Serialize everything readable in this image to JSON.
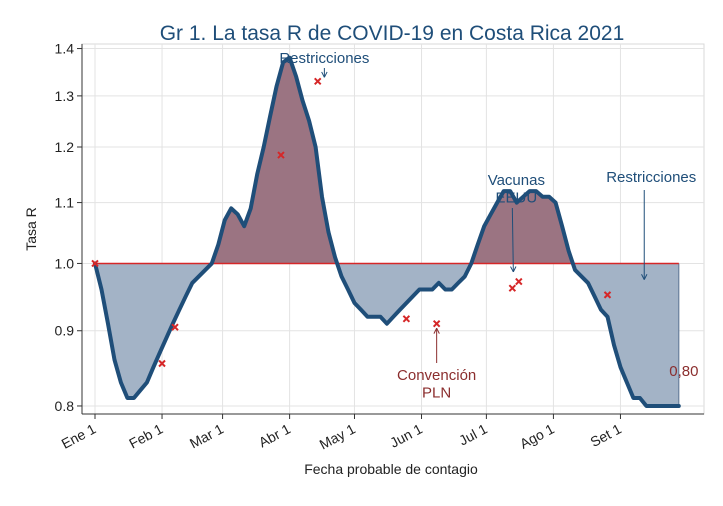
{
  "chart_data": {
    "type": "area",
    "title": "Gr 1. La tasa R de COVID-19 en Costa Rica 2021",
    "xlabel": "Fecha probable de contagio",
    "ylabel": "Tasa R",
    "reference_line": 1.0,
    "y_scale": "log",
    "ylim": [
      0.79,
      1.41
    ],
    "xlim": [
      "2021-01-01",
      "2021-09-29"
    ],
    "x_ticks": [
      {
        "date": "2021-01-01",
        "label": "Ene 1"
      },
      {
        "date": "2021-02-01",
        "label": "Feb 1"
      },
      {
        "date": "2021-03-01",
        "label": "Mar 1"
      },
      {
        "date": "2021-04-01",
        "label": "Abr 1"
      },
      {
        "date": "2021-05-01",
        "label": "May 1"
      },
      {
        "date": "2021-06-01",
        "label": "Jun 1"
      },
      {
        "date": "2021-07-01",
        "label": "Jul 1"
      },
      {
        "date": "2021-08-01",
        "label": "Ago 1"
      },
      {
        "date": "2021-09-01",
        "label": "Set 1"
      }
    ],
    "y_ticks": [
      {
        "value": 0.8,
        "label": "0.8"
      },
      {
        "value": 0.9,
        "label": "0.9"
      },
      {
        "value": 1.0,
        "label": "1.0"
      },
      {
        "value": 1.1,
        "label": "1.1"
      },
      {
        "value": 1.2,
        "label": "1.2"
      },
      {
        "value": 1.3,
        "label": "1.3"
      },
      {
        "value": 1.4,
        "label": "1.4"
      }
    ],
    "grid": true,
    "colors": {
      "line": "#1f4e79",
      "above_fill": "#9b7482",
      "below_fill": "#a3b3c6",
      "reference": "#d62728",
      "markers": "#d62728",
      "title": "#1f4e79",
      "annotation_blue": "#1f4e79",
      "annotation_red": "#8b2e2e"
    },
    "series": [
      {
        "x": [
          "2021-01-01",
          "2021-01-04",
          "2021-01-07",
          "2021-01-10",
          "2021-01-13",
          "2021-01-16",
          "2021-01-19",
          "2021-01-22",
          "2021-01-25",
          "2021-01-28",
          "2021-01-31",
          "2021-02-03",
          "2021-02-06",
          "2021-02-09",
          "2021-02-12",
          "2021-02-15",
          "2021-02-18",
          "2021-02-21",
          "2021-02-24",
          "2021-02-27",
          "2021-03-02",
          "2021-03-05",
          "2021-03-08",
          "2021-03-11",
          "2021-03-14",
          "2021-03-17",
          "2021-03-20",
          "2021-03-23",
          "2021-03-26",
          "2021-03-29",
          "2021-04-01",
          "2021-04-04",
          "2021-04-07",
          "2021-04-10",
          "2021-04-13",
          "2021-04-16",
          "2021-04-19",
          "2021-04-22",
          "2021-04-25",
          "2021-04-28",
          "2021-05-01",
          "2021-05-04",
          "2021-05-07",
          "2021-05-10",
          "2021-05-13",
          "2021-05-16",
          "2021-05-19",
          "2021-05-22",
          "2021-05-25",
          "2021-05-28",
          "2021-05-31",
          "2021-06-03",
          "2021-06-06",
          "2021-06-09",
          "2021-06-12",
          "2021-06-15",
          "2021-06-18",
          "2021-06-21",
          "2021-06-24",
          "2021-06-27",
          "2021-06-30",
          "2021-07-03",
          "2021-07-06",
          "2021-07-09",
          "2021-07-12",
          "2021-07-15",
          "2021-07-18",
          "2021-07-21",
          "2021-07-24",
          "2021-07-27",
          "2021-07-30",
          "2021-08-02",
          "2021-08-05",
          "2021-08-08",
          "2021-08-11",
          "2021-08-14",
          "2021-08-17",
          "2021-08-20",
          "2021-08-23",
          "2021-08-26",
          "2021-08-29",
          "2021-09-01",
          "2021-09-04",
          "2021-09-07",
          "2021-09-10",
          "2021-09-13",
          "2021-09-16",
          "2021-09-19",
          "2021-09-22",
          "2021-09-25",
          "2021-09-28"
        ],
        "values": [
          1.0,
          0.96,
          0.91,
          0.86,
          0.83,
          0.81,
          0.81,
          0.82,
          0.83,
          0.85,
          0.87,
          0.89,
          0.91,
          0.93,
          0.95,
          0.97,
          0.98,
          0.99,
          1.0,
          1.03,
          1.07,
          1.09,
          1.08,
          1.06,
          1.09,
          1.15,
          1.2,
          1.26,
          1.32,
          1.37,
          1.38,
          1.34,
          1.29,
          1.25,
          1.2,
          1.11,
          1.05,
          1.01,
          0.98,
          0.96,
          0.94,
          0.93,
          0.92,
          0.92,
          0.92,
          0.91,
          0.92,
          0.93,
          0.94,
          0.95,
          0.96,
          0.96,
          0.96,
          0.97,
          0.96,
          0.96,
          0.97,
          0.98,
          1.0,
          1.03,
          1.06,
          1.08,
          1.1,
          1.12,
          1.12,
          1.1,
          1.11,
          1.12,
          1.12,
          1.11,
          1.11,
          1.1,
          1.06,
          1.02,
          0.99,
          0.98,
          0.97,
          0.95,
          0.93,
          0.92,
          0.88,
          0.85,
          0.83,
          0.81,
          0.81,
          0.8,
          0.8,
          0.8,
          0.8,
          0.8,
          0.8
        ]
      }
    ],
    "markers": [
      {
        "x": "2021-01-01",
        "y": 1.0
      },
      {
        "x": "2021-02-01",
        "y": 0.855
      },
      {
        "x": "2021-02-07",
        "y": 0.905
      },
      {
        "x": "2021-03-28",
        "y": 1.185
      },
      {
        "x": "2021-04-14",
        "y": 1.33
      },
      {
        "x": "2021-05-25",
        "y": 0.917
      },
      {
        "x": "2021-06-08",
        "y": 0.91
      },
      {
        "x": "2021-07-13",
        "y": 0.962
      },
      {
        "x": "2021-07-16",
        "y": 0.972
      },
      {
        "x": "2021-08-26",
        "y": 0.952
      }
    ],
    "annotations": [
      {
        "text": "Restricciones",
        "x": "2021-04-18",
        "y": 1.33,
        "color_key": "annotation_blue"
      },
      {
        "text": "Vacunas\nEEUU",
        "x": "2021-07-13",
        "y": 0.99,
        "color_key": "annotation_blue"
      },
      {
        "text": "Restricciones",
        "x": "2021-09-12",
        "y": 0.975,
        "color_key": "annotation_blue"
      },
      {
        "text": "Convención\nPLN",
        "x": "2021-06-08",
        "y": 0.912,
        "color_key": "annotation_red"
      },
      {
        "text": "0,80",
        "x": "2021-09-28",
        "y": 0.8,
        "color_key": "annotation_red"
      }
    ]
  }
}
